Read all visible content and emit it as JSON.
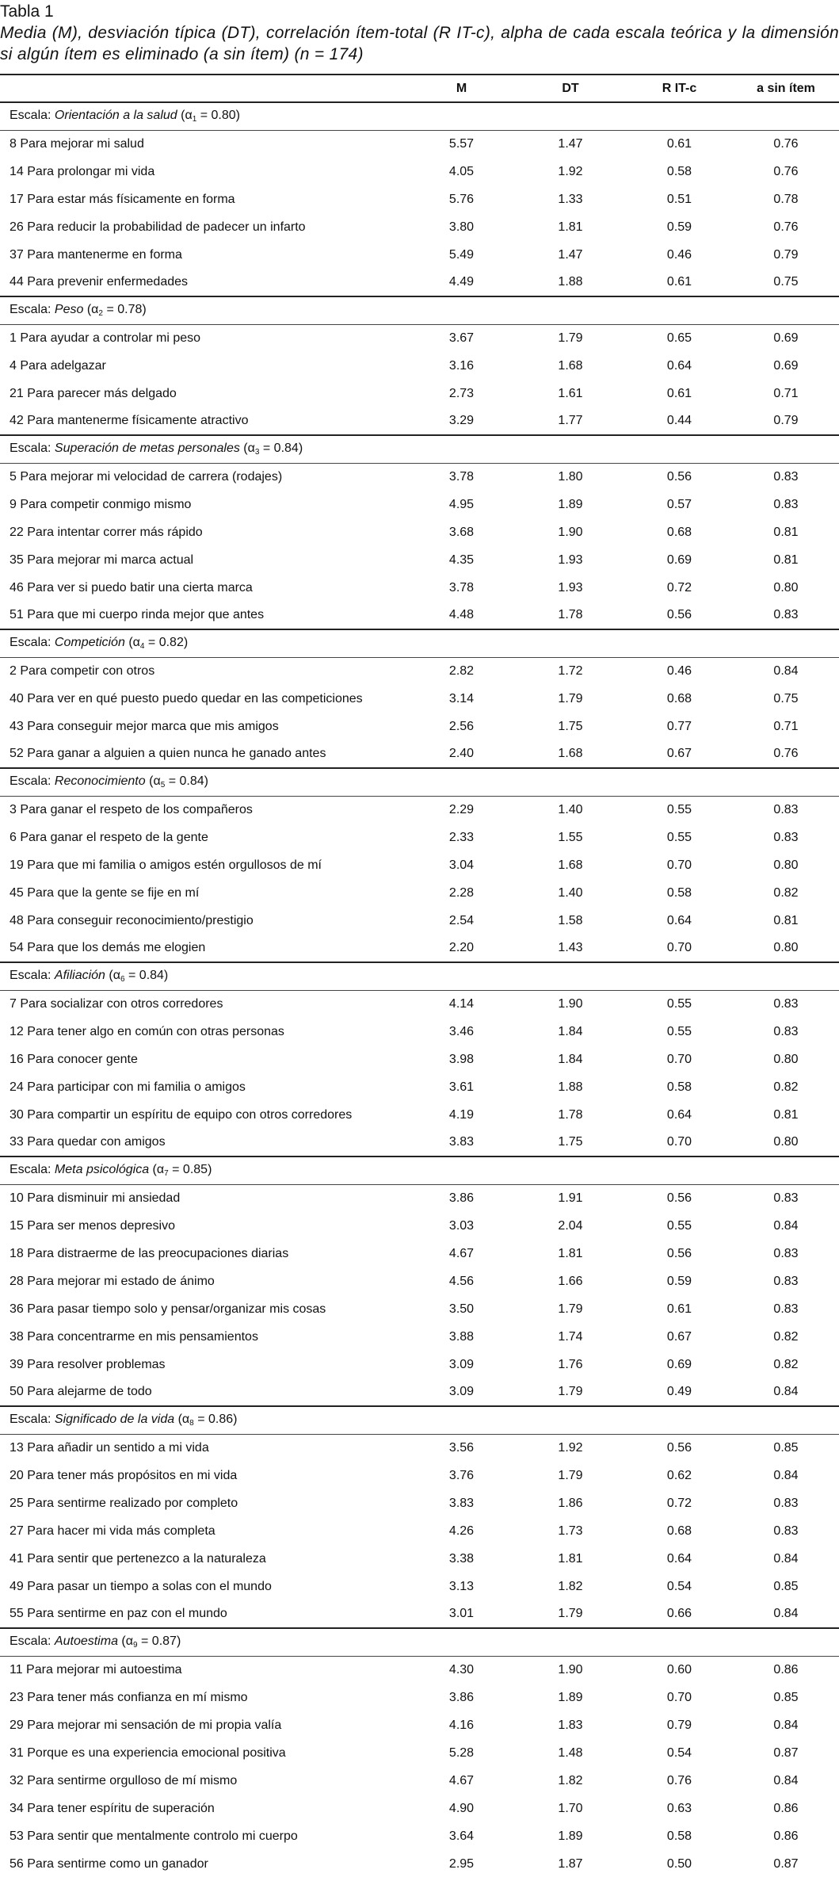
{
  "title": "Tabla 1",
  "caption": "Media (M), desviación típica (DT), correlación ítem-total (R IT-c), alpha de cada escala teórica y la dimensión si algún ítem es eliminado (a sin ítem) (n = 174)",
  "table": {
    "columns": [
      "M",
      "DT",
      "R IT-c",
      "a sin ítem"
    ],
    "scales": [
      {
        "prefix": "Escala:",
        "name": "Orientación a la salud",
        "alpha_symbol": "(α",
        "alpha_index": "1",
        "alpha_value": "= 0.80)",
        "rows": [
          [
            "8 Para mejorar mi salud",
            "5.57",
            "1.47",
            "0.61",
            "0.76"
          ],
          [
            "14 Para prolongar mi vida",
            "4.05",
            "1.92",
            "0.58",
            "0.76"
          ],
          [
            "17 Para estar más físicamente en forma",
            "5.76",
            "1.33",
            "0.51",
            "0.78"
          ],
          [
            "26 Para reducir la probabilidad de padecer un infarto",
            "3.80",
            "1.81",
            "0.59",
            "0.76"
          ],
          [
            "37 Para mantenerme en forma",
            "5.49",
            "1.47",
            "0.46",
            "0.79"
          ],
          [
            "44 Para prevenir enfermedades",
            "4.49",
            "1.88",
            "0.61",
            "0.75"
          ]
        ]
      },
      {
        "prefix": "Escala:",
        "name": "Peso",
        "alpha_symbol": "(α",
        "alpha_index": "2",
        "alpha_value": "= 0.78)",
        "rows": [
          [
            "1 Para ayudar a controlar mi peso",
            "3.67",
            "1.79",
            "0.65",
            "0.69"
          ],
          [
            "4 Para adelgazar",
            "3.16",
            "1.68",
            "0.64",
            "0.69"
          ],
          [
            "21 Para parecer más delgado",
            "2.73",
            "1.61",
            "0.61",
            "0.71"
          ],
          [
            "42 Para mantenerme físicamente atractivo",
            "3.29",
            "1.77",
            "0.44",
            "0.79"
          ]
        ]
      },
      {
        "prefix": "Escala:",
        "name": "Superación de metas personales",
        "alpha_symbol": "(α",
        "alpha_index": "3",
        "alpha_value": "= 0.84)",
        "rows": [
          [
            "5 Para mejorar mi velocidad de carrera (rodajes)",
            "3.78",
            "1.80",
            "0.56",
            "0.83"
          ],
          [
            "9 Para competir conmigo mismo",
            "4.95",
            "1.89",
            "0.57",
            "0.83"
          ],
          [
            "22 Para intentar correr más rápido",
            "3.68",
            "1.90",
            "0.68",
            "0.81"
          ],
          [
            "35 Para mejorar mi marca actual",
            "4.35",
            "1.93",
            "0.69",
            "0.81"
          ],
          [
            "46 Para ver si puedo batir una cierta marca",
            "3.78",
            "1.93",
            "0.72",
            "0.80"
          ],
          [
            "51 Para que mi cuerpo rinda mejor que antes",
            "4.48",
            "1.78",
            "0.56",
            "0.83"
          ]
        ]
      },
      {
        "prefix": "Escala:",
        "name": "Competición",
        "alpha_symbol": "(α",
        "alpha_index": "4",
        "alpha_value": "= 0.82)",
        "rows": [
          [
            "2 Para competir con otros",
            "2.82",
            "1.72",
            "0.46",
            "0.84"
          ],
          [
            "40 Para ver en qué puesto puedo quedar en las competiciones",
            "3.14",
            "1.79",
            "0.68",
            "0.75"
          ],
          [
            "43 Para conseguir mejor marca que mis amigos",
            "2.56",
            "1.75",
            "0.77",
            "0.71"
          ],
          [
            "52 Para ganar a alguien a quien nunca he ganado antes",
            "2.40",
            "1.68",
            "0.67",
            "0.76"
          ]
        ]
      },
      {
        "prefix": "Escala:",
        "name": "Reconocimiento",
        "alpha_symbol": "(α",
        "alpha_index": "5",
        "alpha_value": "= 0.84)",
        "rows": [
          [
            "3 Para ganar el respeto de los compañeros",
            "2.29",
            "1.40",
            "0.55",
            "0.83"
          ],
          [
            "6 Para ganar el respeto de la gente",
            "2.33",
            "1.55",
            "0.55",
            "0.83"
          ],
          [
            "19 Para que mi familia o amigos estén orgullosos de mí",
            "3.04",
            "1.68",
            "0.70",
            "0.80"
          ],
          [
            "45 Para que la gente se fije en mí",
            "2.28",
            "1.40",
            "0.58",
            "0.82"
          ],
          [
            "48 Para conseguir reconocimiento/prestigio",
            "2.54",
            "1.58",
            "0.64",
            "0.81"
          ],
          [
            "54 Para que los demás me elogien",
            "2.20",
            "1.43",
            "0.70",
            "0.80"
          ]
        ]
      },
      {
        "prefix": "Escala:",
        "name": "Afiliación",
        "alpha_symbol": "(α",
        "alpha_index": "6",
        "alpha_value": "= 0.84)",
        "rows": [
          [
            "7 Para socializar con otros corredores",
            "4.14",
            "1.90",
            "0.55",
            "0.83"
          ],
          [
            "12 Para tener algo en común con otras personas",
            "3.46",
            "1.84",
            "0.55",
            "0.83"
          ],
          [
            "16 Para conocer gente",
            "3.98",
            "1.84",
            "0.70",
            "0.80"
          ],
          [
            "24 Para participar con mi familia o amigos",
            "3.61",
            "1.88",
            "0.58",
            "0.82"
          ],
          [
            "30 Para compartir un espíritu de equipo con otros corredores",
            "4.19",
            "1.78",
            "0.64",
            "0.81"
          ],
          [
            "33 Para quedar con amigos",
            "3.83",
            "1.75",
            "0.70",
            "0.80"
          ]
        ]
      },
      {
        "prefix": "Escala:",
        "name": "Meta psicológica",
        "alpha_symbol": "(α",
        "alpha_index": "7",
        "alpha_value": "= 0.85)",
        "rows": [
          [
            "10 Para disminuir mi ansiedad",
            "3.86",
            "1.91",
            "0.56",
            "0.83"
          ],
          [
            "15 Para ser menos depresivo",
            "3.03",
            "2.04",
            "0.55",
            "0.84"
          ],
          [
            "18 Para distraerme de las preocupaciones diarias",
            "4.67",
            "1.81",
            "0.56",
            "0.83"
          ],
          [
            "28 Para mejorar mi estado de ánimo",
            "4.56",
            "1.66",
            "0.59",
            "0.83"
          ],
          [
            "36 Para pasar tiempo solo y pensar/organizar mis cosas",
            "3.50",
            "1.79",
            "0.61",
            "0.83"
          ],
          [
            "38 Para concentrarme en mis pensamientos",
            "3.88",
            "1.74",
            "0.67",
            "0.82"
          ],
          [
            "39 Para resolver problemas",
            "3.09",
            "1.76",
            "0.69",
            "0.82"
          ],
          [
            "50 Para alejarme de todo",
            "3.09",
            "1.79",
            "0.49",
            "0.84"
          ]
        ]
      },
      {
        "prefix": "Escala:",
        "name": "Significado de la vida",
        "alpha_symbol": "(α",
        "alpha_index": "8",
        "alpha_value": "= 0.86)",
        "rows": [
          [
            "13 Para añadir un sentido a mi vida",
            "3.56",
            "1.92",
            "0.56",
            "0.85"
          ],
          [
            "20 Para tener más propósitos en mi vida",
            "3.76",
            "1.79",
            "0.62",
            "0.84"
          ],
          [
            "25 Para sentirme realizado por completo",
            "3.83",
            "1.86",
            "0.72",
            "0.83"
          ],
          [
            "27 Para hacer mi vida más completa",
            "4.26",
            "1.73",
            "0.68",
            "0.83"
          ],
          [
            "41 Para sentir que pertenezco a la naturaleza",
            "3.38",
            "1.81",
            "0.64",
            "0.84"
          ],
          [
            "49 Para pasar un tiempo a solas con el mundo",
            "3.13",
            "1.82",
            "0.54",
            "0.85"
          ],
          [
            "55 Para sentirme en paz con el mundo",
            "3.01",
            "1.79",
            "0.66",
            "0.84"
          ]
        ]
      },
      {
        "prefix": "Escala:",
        "name": "Autoestima",
        "alpha_symbol": "(α",
        "alpha_index": "9",
        "alpha_value": "= 0.87)",
        "rows": [
          [
            "11 Para mejorar mi autoestima",
            "4.30",
            "1.90",
            "0.60",
            "0.86"
          ],
          [
            "23 Para tener más confianza en mí mismo",
            "3.86",
            "1.89",
            "0.70",
            "0.85"
          ],
          [
            "29 Para mejorar mi sensación de mi propia valía",
            "4.16",
            "1.83",
            "0.79",
            "0.84"
          ],
          [
            "31 Porque es una experiencia emocional positiva",
            "5.28",
            "1.48",
            "0.54",
            "0.87"
          ],
          [
            "32 Para sentirme orgulloso de mí mismo",
            "4.67",
            "1.82",
            "0.76",
            "0.84"
          ],
          [
            "34 Para tener espíritu de superación",
            "4.90",
            "1.70",
            "0.63",
            "0.86"
          ],
          [
            "53 Para sentir que mentalmente controlo mi cuerpo",
            "3.64",
            "1.89",
            "0.58",
            "0.86"
          ],
          [
            "56 Para sentirme como un ganador",
            "2.95",
            "1.87",
            "0.50",
            "0.87"
          ]
        ]
      }
    ]
  }
}
